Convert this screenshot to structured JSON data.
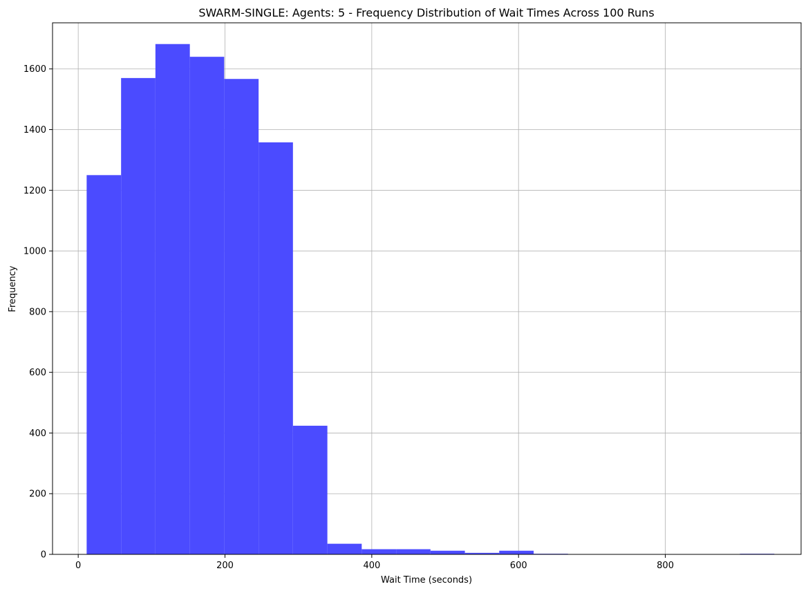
{
  "chart_data": {
    "type": "bar",
    "title": "SWARM-SINGLE: Agents: 5 - Frequency Distribution of Wait Times Across 100 Runs",
    "xlabel": "Wait Time (seconds)",
    "ylabel": "Frequency",
    "xlim": [
      -35,
      985
    ],
    "ylim": [
      0,
      1752
    ],
    "xticks": [
      0,
      200,
      400,
      600,
      800
    ],
    "yticks": [
      0,
      200,
      400,
      600,
      800,
      1000,
      1200,
      1400,
      1600
    ],
    "grid": true,
    "bar_color": "#4b4bff",
    "bins": [
      {
        "x0": 11.5,
        "x1": 58.4,
        "value": 1250
      },
      {
        "x0": 58.4,
        "x1": 105.2,
        "value": 1570
      },
      {
        "x0": 105.2,
        "x1": 152.1,
        "value": 1682
      },
      {
        "x0": 152.1,
        "x1": 198.9,
        "value": 1640
      },
      {
        "x0": 198.9,
        "x1": 245.8,
        "value": 1567
      },
      {
        "x0": 245.8,
        "x1": 292.6,
        "value": 1358
      },
      {
        "x0": 292.6,
        "x1": 339.5,
        "value": 424
      },
      {
        "x0": 339.5,
        "x1": 386.3,
        "value": 35
      },
      {
        "x0": 386.3,
        "x1": 433.2,
        "value": 17
      },
      {
        "x0": 433.2,
        "x1": 480.0,
        "value": 17
      },
      {
        "x0": 480.0,
        "x1": 526.9,
        "value": 12
      },
      {
        "x0": 526.9,
        "x1": 573.7,
        "value": 5
      },
      {
        "x0": 573.7,
        "x1": 620.6,
        "value": 12
      },
      {
        "x0": 620.6,
        "x1": 667.4,
        "value": 2
      },
      {
        "x0": 667.4,
        "x1": 714.3,
        "value": 0
      },
      {
        "x0": 714.3,
        "x1": 761.1,
        "value": 0
      },
      {
        "x0": 761.1,
        "x1": 808.0,
        "value": 0
      },
      {
        "x0": 808.0,
        "x1": 854.8,
        "value": 0
      },
      {
        "x0": 854.8,
        "x1": 901.7,
        "value": 0
      },
      {
        "x0": 901.7,
        "x1": 948.5,
        "value": 2
      }
    ]
  }
}
